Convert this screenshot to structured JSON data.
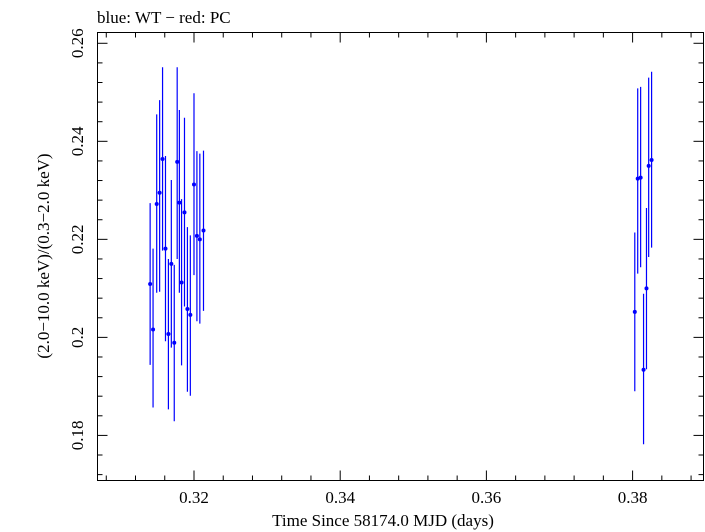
{
  "chart_data": {
    "type": "scatter",
    "title": "blue: WT − red: PC",
    "xlabel": "Time Since 58174.0 MJD (days)",
    "ylabel": "(2.0−10.0 keV)/(0.3−2.0 keV)",
    "xlim": [
      0.3068,
      0.3897
    ],
    "ylim": [
      0.1708,
      0.2622
    ],
    "xticks": [
      0.32,
      0.34,
      0.36,
      0.38
    ],
    "xtick_labels": [
      "0.32",
      "0.34",
      "0.36",
      "0.38"
    ],
    "yticks": [
      0.18,
      0.2,
      0.22,
      0.24,
      0.26
    ],
    "ytick_labels": [
      "0.18",
      "0.2",
      "0.22",
      "0.24",
      "0.26"
    ],
    "grid": false,
    "series": [
      {
        "name": "WT",
        "color": "#0000ff",
        "points": [
          {
            "x": 0.314,
            "y": 0.2109,
            "ylo": 0.1944,
            "yhi": 0.2274
          },
          {
            "x": 0.3144,
            "y": 0.2016,
            "ylo": 0.1857,
            "yhi": 0.2181
          },
          {
            "x": 0.3149,
            "y": 0.2272,
            "ylo": 0.2091,
            "yhi": 0.2455
          },
          {
            "x": 0.3153,
            "y": 0.2295,
            "ylo": 0.2093,
            "yhi": 0.2484
          },
          {
            "x": 0.3157,
            "y": 0.2364,
            "ylo": 0.2177,
            "yhi": 0.2551
          },
          {
            "x": 0.3161,
            "y": 0.2181,
            "ylo": 0.1992,
            "yhi": 0.237
          },
          {
            "x": 0.3165,
            "y": 0.2007,
            "ylo": 0.1853,
            "yhi": 0.216
          },
          {
            "x": 0.3169,
            "y": 0.215,
            "ylo": 0.1979,
            "yhi": 0.2321
          },
          {
            "x": 0.3173,
            "y": 0.1989,
            "ylo": 0.1829,
            "yhi": 0.2148
          },
          {
            "x": 0.3177,
            "y": 0.2358,
            "ylo": 0.216,
            "yhi": 0.2551
          },
          {
            "x": 0.318,
            "y": 0.2275,
            "ylo": 0.2091,
            "yhi": 0.2464
          },
          {
            "x": 0.3183,
            "y": 0.2112,
            "ylo": 0.1943,
            "yhi": 0.2282
          },
          {
            "x": 0.3187,
            "y": 0.2255,
            "ylo": 0.2063,
            "yhi": 0.2448
          },
          {
            "x": 0.3191,
            "y": 0.2058,
            "ylo": 0.1889,
            "yhi": 0.2225
          },
          {
            "x": 0.3195,
            "y": 0.2046,
            "ylo": 0.1881,
            "yhi": 0.2208
          },
          {
            "x": 0.32,
            "y": 0.2312,
            "ylo": 0.2127,
            "yhi": 0.2498
          },
          {
            "x": 0.3204,
            "y": 0.2207,
            "ylo": 0.2033,
            "yhi": 0.238
          },
          {
            "x": 0.3208,
            "y": 0.22,
            "ylo": 0.2028,
            "yhi": 0.2375
          },
          {
            "x": 0.3213,
            "y": 0.2218,
            "ylo": 0.2054,
            "yhi": 0.2381
          },
          {
            "x": 0.3803,
            "y": 0.2052,
            "ylo": 0.189,
            "yhi": 0.2214
          },
          {
            "x": 0.3807,
            "y": 0.2324,
            "ylo": 0.213,
            "yhi": 0.2508
          },
          {
            "x": 0.3811,
            "y": 0.2326,
            "ylo": 0.2143,
            "yhi": 0.2511
          },
          {
            "x": 0.3815,
            "y": 0.1934,
            "ylo": 0.1782,
            "yhi": 0.2089
          },
          {
            "x": 0.3819,
            "y": 0.21,
            "ylo": 0.1935,
            "yhi": 0.2264
          },
          {
            "x": 0.3822,
            "y": 0.235,
            "ylo": 0.2164,
            "yhi": 0.253
          },
          {
            "x": 0.3826,
            "y": 0.2362,
            "ylo": 0.2183,
            "yhi": 0.2542
          }
        ]
      },
      {
        "name": "PC",
        "color": "#ff0000",
        "points": []
      }
    ]
  }
}
